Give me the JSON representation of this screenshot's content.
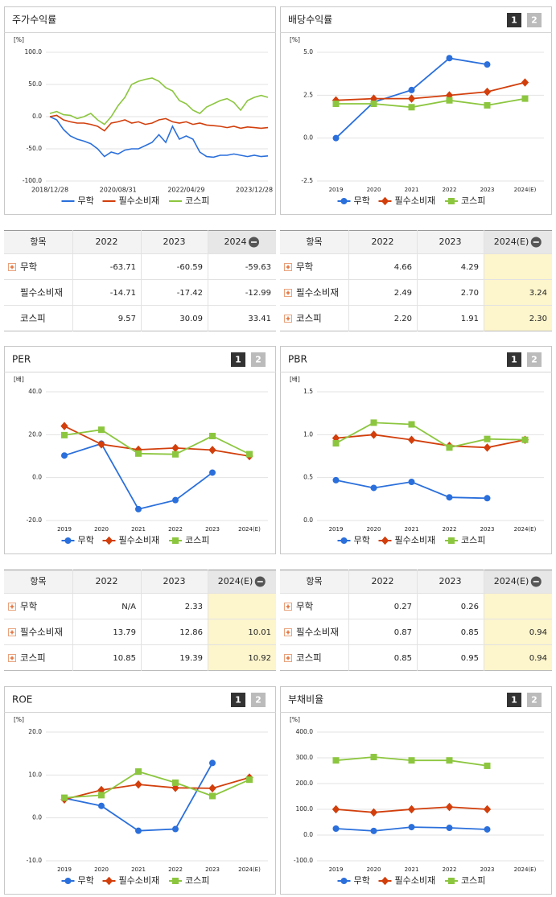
{
  "chart_data": [
    {
      "type": "line",
      "title": "주가수익률",
      "unit": "[%]",
      "markers": false,
      "categories": [
        "2018/12/28",
        null,
        null,
        null,
        null,
        null,
        null,
        null,
        null,
        null,
        "2020/08/31",
        null,
        null,
        null,
        null,
        null,
        null,
        null,
        null,
        null,
        "2022/04/29",
        null,
        null,
        null,
        null,
        null,
        null,
        null,
        null,
        null,
        "2023/12/28",
        null,
        null
      ],
      "series": [
        {
          "name": "무학",
          "color": "#2a6fdb",
          "marker": "circle",
          "values": [
            0,
            -5,
            -20,
            -30,
            -35,
            -38,
            -42,
            -50,
            -62,
            -55,
            -58,
            -52,
            -50,
            -50,
            -45,
            -40,
            -28,
            -40,
            -15,
            -35,
            -30,
            -35,
            -55,
            -62,
            -63,
            -60,
            -60,
            -58,
            -60,
            -62,
            -60,
            -62,
            -61
          ]
        },
        {
          "name": "필수소비재",
          "color": "#d23f0c",
          "marker": "diamond",
          "values": [
            0,
            2,
            -5,
            -8,
            -10,
            -10,
            -12,
            -15,
            -22,
            -10,
            -8,
            -5,
            -10,
            -8,
            -12,
            -10,
            -5,
            -3,
            -8,
            -10,
            -8,
            -12,
            -10,
            -13,
            -14,
            -15,
            -17,
            -15,
            -18,
            -16,
            -17,
            -18,
            -17
          ]
        },
        {
          "name": "코스피",
          "color": "#8cc63f",
          "marker": "square",
          "values": [
            5,
            8,
            3,
            2,
            -3,
            0,
            5,
            -5,
            -12,
            0,
            17,
            30,
            50,
            55,
            58,
            60,
            55,
            45,
            40,
            25,
            20,
            10,
            5,
            15,
            20,
            25,
            28,
            22,
            10,
            25,
            30,
            33,
            30
          ]
        }
      ],
      "ylim": [
        -100,
        100
      ],
      "yticks": [
        {
          "value": -100,
          "label": "-100.0"
        },
        {
          "value": -50,
          "label": "-50.0"
        },
        {
          "value": 0,
          "label": "0.0"
        },
        {
          "value": 50,
          "label": "50.0"
        },
        {
          "value": 100,
          "label": "100.0"
        }
      ]
    },
    {
      "type": "line",
      "title": "배당수익률",
      "unit": "[%]",
      "markers": true,
      "tabs": [
        "1",
        "2"
      ],
      "categories": [
        "2019",
        "2020",
        "2021",
        "2022",
        "2023",
        "2024(E)"
      ],
      "series": [
        {
          "name": "무학",
          "color": "#2a6fdb",
          "marker": "circle",
          "values": [
            0.0,
            2.1,
            2.8,
            4.66,
            4.29,
            null
          ]
        },
        {
          "name": "필수소비재",
          "color": "#d23f0c",
          "marker": "diamond",
          "values": [
            2.2,
            2.3,
            2.3,
            2.49,
            2.7,
            3.24
          ]
        },
        {
          "name": "코스피",
          "color": "#8cc63f",
          "marker": "square",
          "values": [
            2.0,
            2.0,
            1.8,
            2.2,
            1.91,
            2.3
          ]
        }
      ],
      "ylim": [
        -2.5,
        5
      ],
      "yticks": [
        -2.5,
        {
          "value": 0,
          "label": "0.0"
        },
        2.5,
        {
          "value": 5,
          "label": "5.0"
        }
      ]
    },
    {
      "type": "line",
      "title": "PER",
      "unit": "[배]",
      "markers": true,
      "tabs": [
        "1",
        "2"
      ],
      "categories": [
        "2019",
        "2020",
        "2021",
        "2022",
        "2023",
        "2024(E)"
      ],
      "series": [
        {
          "name": "무학",
          "color": "#2a6fdb",
          "marker": "circle",
          "values": [
            10.3,
            15.8,
            -14.7,
            -10.5,
            2.33,
            null
          ]
        },
        {
          "name": "필수소비재",
          "color": "#d23f0c",
          "marker": "diamond",
          "values": [
            24.0,
            15.5,
            13.0,
            13.79,
            12.86,
            10.01
          ]
        },
        {
          "name": "코스피",
          "color": "#8cc63f",
          "marker": "square",
          "values": [
            19.8,
            22.3,
            11.2,
            10.85,
            19.39,
            10.92
          ]
        }
      ],
      "ylim": [
        -20,
        40
      ],
      "yticks": [
        {
          "value": -20,
          "label": "-20.0"
        },
        {
          "value": 0,
          "label": "0.0"
        },
        {
          "value": 20,
          "label": "20.0"
        },
        {
          "value": 40,
          "label": "40.0"
        }
      ]
    },
    {
      "type": "line",
      "title": "PBR",
      "unit": "[배]",
      "markers": true,
      "tabs": [
        "1",
        "2"
      ],
      "categories": [
        "2019",
        "2020",
        "2021",
        "2022",
        "2023",
        "2024(E)"
      ],
      "series": [
        {
          "name": "무학",
          "color": "#2a6fdb",
          "marker": "circle",
          "values": [
            0.47,
            0.38,
            0.45,
            0.27,
            0.26,
            null
          ]
        },
        {
          "name": "필수소비재",
          "color": "#d23f0c",
          "marker": "diamond",
          "values": [
            0.96,
            1.0,
            0.94,
            0.87,
            0.85,
            0.94
          ]
        },
        {
          "name": "코스피",
          "color": "#8cc63f",
          "marker": "square",
          "values": [
            0.9,
            1.14,
            1.12,
            0.85,
            0.95,
            0.94
          ]
        }
      ],
      "ylim": [
        0,
        1.5
      ],
      "yticks": [
        {
          "value": 0,
          "label": "0.0"
        },
        0.5,
        {
          "value": 1,
          "label": "1.0"
        },
        1.5
      ]
    },
    {
      "type": "line",
      "title": "ROE",
      "unit": "[%]",
      "markers": true,
      "tabs": [
        "1",
        "2"
      ],
      "categories": [
        "2019",
        "2020",
        "2021",
        "2022",
        "2023",
        "2024(E)"
      ],
      "series": [
        {
          "name": "무학",
          "color": "#2a6fdb",
          "marker": "circle",
          "values": [
            4.6,
            2.8,
            -3.0,
            -2.6,
            12.8,
            null
          ]
        },
        {
          "name": "필수소비재",
          "color": "#d23f0c",
          "marker": "diamond",
          "values": [
            4.3,
            6.5,
            7.8,
            7.0,
            6.9,
            9.4
          ]
        },
        {
          "name": "코스피",
          "color": "#8cc63f",
          "marker": "square",
          "values": [
            4.7,
            5.3,
            10.8,
            8.2,
            5.1,
            8.9
          ]
        }
      ],
      "ylim": [
        -10,
        20
      ],
      "yticks": [
        {
          "value": -10,
          "label": "-10.0"
        },
        {
          "value": 0,
          "label": "0.0"
        },
        {
          "value": 10,
          "label": "10.0"
        },
        {
          "value": 20,
          "label": "20.0"
        }
      ]
    },
    {
      "type": "line",
      "title": "부채비율",
      "unit": "[%]",
      "markers": true,
      "tabs": [
        "1",
        "2"
      ],
      "categories": [
        "2019",
        "2020",
        "2021",
        "2022",
        "2023",
        "2024(E)"
      ],
      "series": [
        {
          "name": "무학",
          "color": "#2a6fdb",
          "marker": "circle",
          "values": [
            25,
            16,
            31,
            28,
            22,
            null
          ]
        },
        {
          "name": "필수소비재",
          "color": "#d23f0c",
          "marker": "diamond",
          "values": [
            100,
            88,
            100,
            109,
            100,
            null
          ]
        },
        {
          "name": "코스피",
          "color": "#8cc63f",
          "marker": "square",
          "values": [
            290,
            303,
            290,
            290,
            269,
            null
          ]
        }
      ],
      "ylim": [
        -100,
        400
      ],
      "yticks": [
        {
          "value": -100,
          "label": "-100.0"
        },
        {
          "value": 0,
          "label": "0.0"
        },
        {
          "value": 100,
          "label": "100.0"
        },
        {
          "value": 200,
          "label": "200.0"
        },
        {
          "value": 300,
          "label": "300.0"
        },
        {
          "value": 400,
          "label": "400.0"
        }
      ]
    }
  ],
  "tables": [
    {
      "header": [
        "항목",
        "2022",
        "2023",
        "2024"
      ],
      "highlight_last_column": false,
      "rows": [
        {
          "expandable": true,
          "cells": [
            "무학",
            "-63.71",
            "-60.59",
            "-59.63"
          ]
        },
        {
          "expandable": false,
          "cells": [
            "필수소비재",
            "-14.71",
            "-17.42",
            "-12.99"
          ]
        },
        {
          "expandable": false,
          "cells": [
            "코스피",
            "9.57",
            "30.09",
            "33.41"
          ]
        }
      ]
    },
    {
      "header": [
        "항목",
        "2022",
        "2023",
        "2024(E)"
      ],
      "highlight_last_column": true,
      "rows": [
        {
          "expandable": true,
          "cells": [
            "무학",
            "4.66",
            "4.29",
            null
          ]
        },
        {
          "expandable": true,
          "cells": [
            "필수소비재",
            "2.49",
            "2.70",
            "3.24"
          ]
        },
        {
          "expandable": true,
          "cells": [
            "코스피",
            "2.20",
            "1.91",
            "2.30"
          ]
        }
      ]
    },
    {
      "header": [
        "항목",
        "2022",
        "2023",
        "2024(E)"
      ],
      "highlight_last_column": true,
      "rows": [
        {
          "expandable": true,
          "cells": [
            "무학",
            "N/A",
            "2.33",
            null
          ]
        },
        {
          "expandable": true,
          "cells": [
            "필수소비재",
            "13.79",
            "12.86",
            "10.01"
          ]
        },
        {
          "expandable": true,
          "cells": [
            "코스피",
            "10.85",
            "19.39",
            "10.92"
          ]
        }
      ]
    },
    {
      "header": [
        "항목",
        "2022",
        "2023",
        "2024(E)"
      ],
      "highlight_last_column": true,
      "rows": [
        {
          "expandable": true,
          "cells": [
            "무학",
            "0.27",
            "0.26",
            null
          ]
        },
        {
          "expandable": true,
          "cells": [
            "필수소비재",
            "0.87",
            "0.85",
            "0.94"
          ]
        },
        {
          "expandable": true,
          "cells": [
            "코스피",
            "0.85",
            "0.95",
            "0.94"
          ]
        }
      ]
    }
  ]
}
